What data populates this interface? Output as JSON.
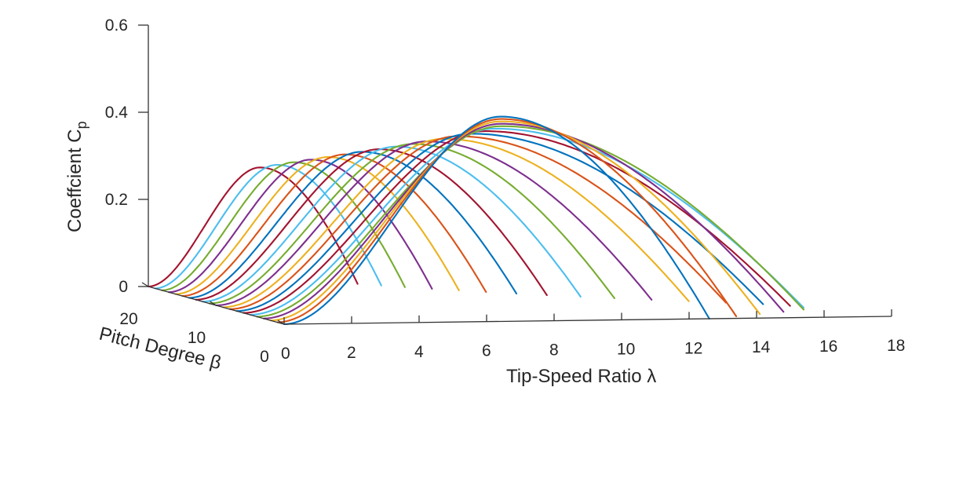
{
  "chart_data": {
    "type": "line",
    "subtype": "3d-waterfall",
    "title": "",
    "xlabel": "Tip-Speed Ratio λ",
    "ylabel": "Pitch Degree β",
    "zlabel": "Coeffcient C",
    "zlabel_subscript": "p",
    "xlim": [
      0,
      18
    ],
    "ylim": [
      0,
      20
    ],
    "zlim": [
      0,
      0.6
    ],
    "x_ticks": [
      "0",
      "2",
      "4",
      "6",
      "8",
      "10",
      "12",
      "14",
      "16",
      "18"
    ],
    "y_ticks": [
      "0",
      "10",
      "20"
    ],
    "z_ticks": [
      "0",
      "0.2",
      "0.4",
      "0.6"
    ],
    "grid": false,
    "legend": "none",
    "series_colors": [
      "#0072BD",
      "#D95319",
      "#EDB120",
      "#7E2F8E",
      "#77AC30",
      "#4DBEEE",
      "#A2142F"
    ],
    "series": [
      {
        "pitch": 0,
        "x_end": 12.6,
        "cp_peak": 0.47,
        "lambda_peak": 6.4
      },
      {
        "pitch": 1,
        "x_end": 13.6,
        "cp_peak": 0.46,
        "lambda_peak": 6.6
      },
      {
        "pitch": 2,
        "x_end": 14.5,
        "cp_peak": 0.45,
        "lambda_peak": 6.8
      },
      {
        "pitch": 3,
        "x_end": 15.4,
        "cp_peak": 0.44,
        "lambda_peak": 7.0
      },
      {
        "pitch": 4,
        "x_end": 16.2,
        "cp_peak": 0.43,
        "lambda_peak": 7.2
      },
      {
        "pitch": 5,
        "x_end": 16.4,
        "cp_peak": 0.42,
        "lambda_peak": 7.2
      },
      {
        "pitch": 6,
        "x_end": 16.2,
        "cp_peak": 0.41,
        "lambda_peak": 7.1
      },
      {
        "pitch": 7,
        "x_end": 15.6,
        "cp_peak": 0.4,
        "lambda_peak": 6.9
      },
      {
        "pitch": 8,
        "x_end": 14.7,
        "cp_peak": 0.39,
        "lambda_peak": 6.7
      },
      {
        "pitch": 9,
        "x_end": 13.8,
        "cp_peak": 0.38,
        "lambda_peak": 6.5
      },
      {
        "pitch": 10,
        "x_end": 12.9,
        "cp_peak": 0.37,
        "lambda_peak": 6.2
      },
      {
        "pitch": 11,
        "x_end": 12.0,
        "cp_peak": 0.36,
        "lambda_peak": 6.0
      },
      {
        "pitch": 12,
        "x_end": 11.2,
        "cp_peak": 0.35,
        "lambda_peak": 5.7
      },
      {
        "pitch": 13,
        "x_end": 10.4,
        "cp_peak": 0.34,
        "lambda_peak": 5.4
      },
      {
        "pitch": 14,
        "x_end": 9.7,
        "cp_peak": 0.33,
        "lambda_peak": 5.1
      },
      {
        "pitch": 15,
        "x_end": 9.0,
        "cp_peak": 0.32,
        "lambda_peak": 4.8
      },
      {
        "pitch": 16,
        "x_end": 8.4,
        "cp_peak": 0.31,
        "lambda_peak": 4.5
      },
      {
        "pitch": 17,
        "x_end": 7.8,
        "cp_peak": 0.3,
        "lambda_peak": 4.2
      },
      {
        "pitch": 18,
        "x_end": 7.2,
        "cp_peak": 0.29,
        "lambda_peak": 3.9
      },
      {
        "pitch": 19,
        "x_end": 6.7,
        "cp_peak": 0.28,
        "lambda_peak": 3.6
      },
      {
        "pitch": 20,
        "x_end": 6.2,
        "cp_peak": 0.27,
        "lambda_peak": 3.3
      }
    ]
  }
}
